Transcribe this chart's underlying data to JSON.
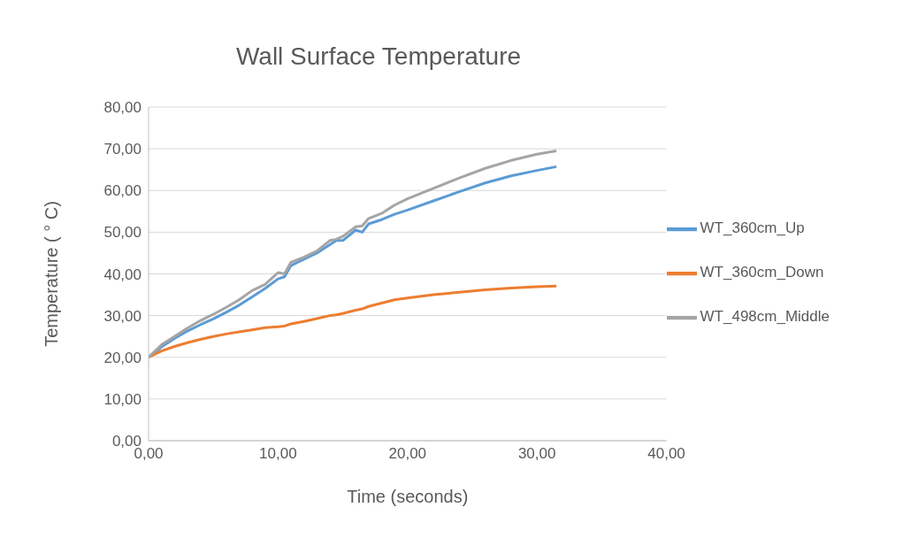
{
  "chart_data": {
    "type": "line",
    "title": "Wall Surface Temperature",
    "xlabel": "Time (seconds)",
    "ylabel": "Temperature ( ° C)",
    "x": [
      0,
      1,
      2,
      3,
      4,
      5,
      6,
      7,
      8,
      9,
      10,
      10.5,
      11,
      12,
      13,
      14,
      14.5,
      15,
      16,
      16.5,
      17,
      18,
      19,
      20,
      22,
      24,
      26,
      28,
      30,
      31.5
    ],
    "series": [
      {
        "name": "WT_360cm_Up",
        "color": "#5b9bd5",
        "values": [
          20,
          22.5,
          24.5,
          26.3,
          27.8,
          29.2,
          30.8,
          32.5,
          34.5,
          36.5,
          38.8,
          39.3,
          42,
          43.5,
          45,
          47,
          48,
          48,
          50.5,
          50,
          52,
          53,
          54.3,
          55.3,
          57.5,
          59.7,
          61.8,
          63.5,
          64.8,
          65.7
        ]
      },
      {
        "name": "WT_360cm_Down",
        "color": "#ed7d31",
        "values": [
          20,
          21.5,
          22.6,
          23.5,
          24.3,
          25,
          25.6,
          26.1,
          26.6,
          27.1,
          27.3,
          27.5,
          28,
          28.6,
          29.3,
          30,
          30.2,
          30.5,
          31.3,
          31.6,
          32.2,
          33,
          33.8,
          34.2,
          35,
          35.6,
          36.2,
          36.6,
          36.9,
          37.1
        ]
      },
      {
        "name": "WT_498cm_Middle",
        "color": "#a5a5a5",
        "values": [
          20,
          23,
          25,
          27,
          28.8,
          30.3,
          32,
          33.8,
          36,
          37.5,
          40.3,
          40,
          42.8,
          44,
          45.5,
          48,
          48.3,
          49,
          51.3,
          51.5,
          53.3,
          54.5,
          56.5,
          58,
          60.5,
          63,
          65.3,
          67.2,
          68.7,
          69.5
        ]
      }
    ],
    "xlim": [
      0,
      40
    ],
    "xticks": [
      {
        "value": 0,
        "label": "0,00"
      },
      {
        "value": 10,
        "label": "10,00"
      },
      {
        "value": 20,
        "label": "20,00"
      },
      {
        "value": 30,
        "label": "30,00"
      },
      {
        "value": 40,
        "label": "40,00"
      }
    ],
    "ylim": [
      0,
      80
    ],
    "yticks": [
      {
        "value": 0,
        "label": "0,00"
      },
      {
        "value": 10,
        "label": "10,00"
      },
      {
        "value": 20,
        "label": "20,00"
      },
      {
        "value": 30,
        "label": "30,00"
      },
      {
        "value": 40,
        "label": "40,00"
      },
      {
        "value": 50,
        "label": "50,00"
      },
      {
        "value": 60,
        "label": "60,00"
      },
      {
        "value": 70,
        "label": "70,00"
      },
      {
        "value": 80,
        "label": "80,00"
      }
    ],
    "grid": "y",
    "legend": "right",
    "marker": "none",
    "line_style": "solid"
  }
}
